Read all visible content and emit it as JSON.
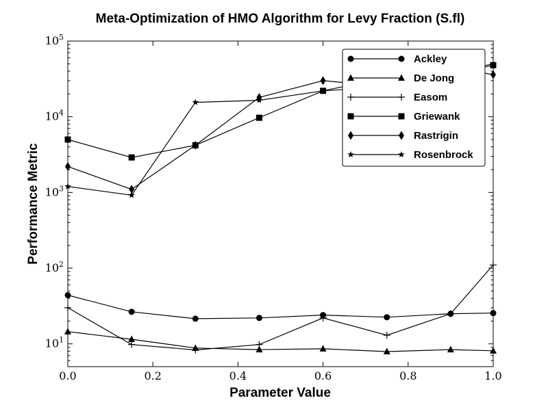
{
  "chart_data": {
    "type": "line",
    "title": "Meta-Optimization of HMO Algorithm for Levy Fraction (S.fl)",
    "xlabel": "Parameter Value",
    "ylabel": "Performance Metric",
    "xlim": [
      0.0,
      1.0
    ],
    "ylim": [
      5,
      100000
    ],
    "yscale": "log",
    "grid": false,
    "legend_position": "top-right",
    "x_ticks": [
      "0.0",
      "0.2",
      "0.4",
      "0.6",
      "0.8",
      "1.0"
    ],
    "y_ticks": [
      {
        "base": "10",
        "exp": "1"
      },
      {
        "base": "10",
        "exp": "2"
      },
      {
        "base": "10",
        "exp": "3"
      },
      {
        "base": "10",
        "exp": "4"
      },
      {
        "base": "10",
        "exp": "5"
      }
    ],
    "x": [
      0.0,
      0.15,
      0.3,
      0.45,
      0.6,
      0.75,
      0.9,
      1.0
    ],
    "series": [
      {
        "name": "Ackley",
        "marker": "circle",
        "color": "#000000",
        "values": [
          44,
          26.5,
          21.5,
          22,
          24,
          22.5,
          25,
          25.5
        ]
      },
      {
        "name": "De Jong",
        "marker": "triangle",
        "color": "#000000",
        "values": [
          14.5,
          11.5,
          8.8,
          8.4,
          8.6,
          7.9,
          8.4,
          8.1
        ]
      },
      {
        "name": "Easom",
        "marker": "plus",
        "color": "#000000",
        "values": [
          30,
          9.8,
          8.3,
          9.8,
          22,
          13,
          25,
          110
        ]
      },
      {
        "name": "Griewank",
        "marker": "square",
        "color": "#000000",
        "values": [
          5000,
          2900,
          4200,
          9700,
          22000,
          25000,
          36000,
          48000
        ]
      },
      {
        "name": "Rastrigin",
        "marker": "diamond",
        "color": "#000000",
        "values": [
          2200,
          1100,
          4200,
          18000,
          30000,
          25000,
          45000,
          36000
        ]
      },
      {
        "name": "Rosenbrock",
        "marker": "star",
        "color": "#000000",
        "values": [
          1200,
          920,
          15500,
          16500,
          22000,
          33000,
          38000,
          50000
        ]
      }
    ]
  }
}
